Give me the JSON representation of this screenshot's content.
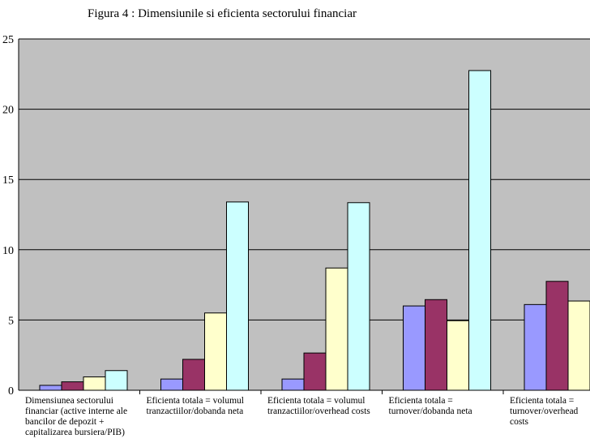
{
  "chart_data": {
    "type": "bar",
    "title": "Figura 4 : Dimensiunile si eficienta sectorului financiar",
    "xlabel": "",
    "ylabel": "",
    "ylim": [
      0,
      25
    ],
    "yticks": [
      0,
      5,
      10,
      15,
      20,
      25
    ],
    "grid": true,
    "legend": "none",
    "categories": [
      [
        "Dimensiunea sectorului",
        "financiar (active interne ale",
        "bancilor de depozit +",
        "capitalizarea bursiera/PIB)"
      ],
      [
        "Eficienta totala = volumul",
        "tranzactiilor/dobanda neta"
      ],
      [
        "Eficienta totala = volumul",
        "tranzactiilor/overhead costs"
      ],
      [
        "Eficienta totala =",
        "turnover/dobanda neta"
      ],
      [
        "Eficienta totala =",
        "turnover/overhead",
        "costs"
      ]
    ],
    "series": [
      {
        "color": "#9999ff",
        "values": [
          0.35,
          0.8,
          0.8,
          6.0,
          6.1
        ]
      },
      {
        "color": "#993366",
        "values": [
          0.6,
          2.2,
          2.65,
          6.45,
          7.75
        ]
      },
      {
        "color": "#ffffcc",
        "values": [
          0.95,
          5.5,
          8.7,
          4.95,
          6.35
        ]
      },
      {
        "color": "#ccffff",
        "values": [
          1.4,
          13.4,
          13.35,
          22.75,
          null
        ]
      }
    ]
  },
  "colors": {
    "plot_background": "#c0c0c0",
    "gridline": "#000000"
  }
}
